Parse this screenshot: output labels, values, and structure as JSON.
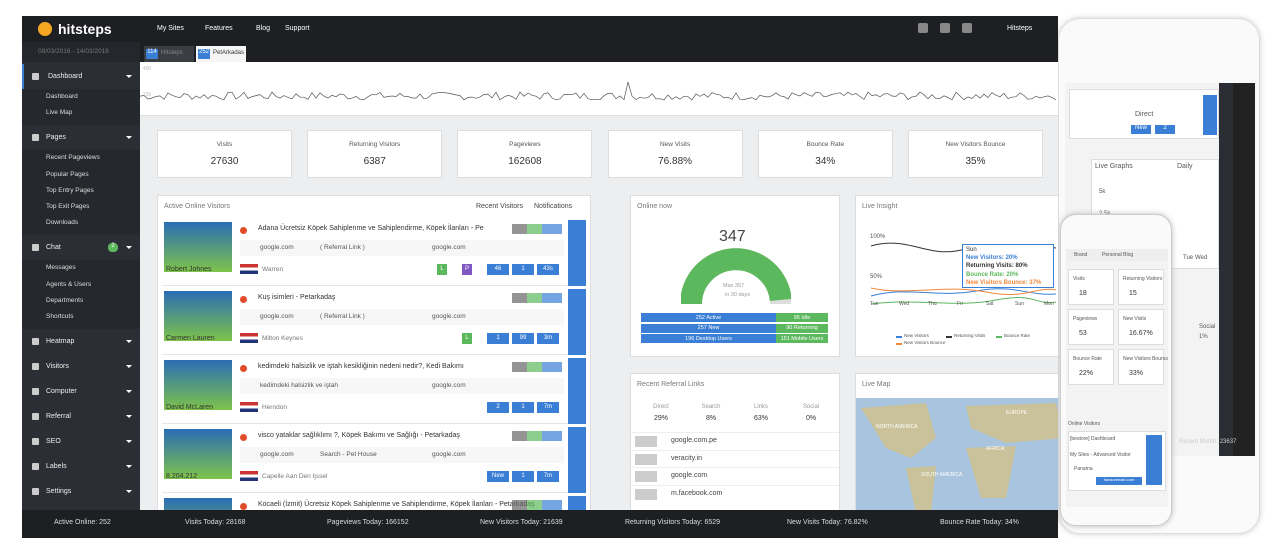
{
  "nav": {
    "brand": "hitsteps",
    "menu": [
      "My Sites",
      "Features",
      "Blog",
      "Support"
    ],
    "user": "Hitsteps"
  },
  "date_range": "08/03/2016 - 14/03/2016",
  "site_tabs": [
    {
      "count": "114",
      "label": "Hitsteps"
    },
    {
      "count": "252",
      "label": "PetArkadas"
    }
  ],
  "sidebar": [
    {
      "label": "Dashboard",
      "children": [
        "Dashboard",
        "Live Map"
      ]
    },
    {
      "label": "Pages",
      "children": [
        "Recent Pageviews",
        "Popular Pages",
        "Top Entry Pages",
        "Top Exit Pages",
        "Downloads"
      ]
    },
    {
      "label": "Chat",
      "badge": "2",
      "children": [
        "Messages",
        "Agents & Users",
        "Departments",
        "Shortcuts"
      ]
    },
    {
      "label": "Heatmap"
    },
    {
      "label": "Visitors"
    },
    {
      "label": "Computer"
    },
    {
      "label": "Referral"
    },
    {
      "label": "SEO"
    },
    {
      "label": "Labels"
    },
    {
      "label": "Settings"
    }
  ],
  "traffic_axis": [
    "400",
    "200"
  ],
  "stats": [
    {
      "label": "Visits",
      "value": "27630"
    },
    {
      "label": "Returning Visitors",
      "value": "6387"
    },
    {
      "label": "Pageviews",
      "value": "162608"
    },
    {
      "label": "New Visits",
      "value": "76.88%"
    },
    {
      "label": "Bounce Rate",
      "value": "34%"
    },
    {
      "label": "New Visitors Bounce",
      "value": "35%"
    }
  ],
  "active_online": {
    "title": "Active Online Visitors",
    "tabs": [
      "Recent Visitors",
      "Notifications"
    ],
    "visitors": [
      {
        "page": "Adana Ücretsiz Köpek Sahiplenme ve Sahiplendirme, Köpek İlanları - Pe",
        "source": "google.com",
        "referral": "( Referral Link )",
        "engine": "google.com",
        "name": "Robert Johnes",
        "location": "Warren",
        "badges": [
          "L",
          "P",
          "46",
          "1",
          "43s"
        ]
      },
      {
        "page": "Kuş isimleri - Petarkadaş",
        "source": "google.com",
        "referral": "( Referral Link )",
        "engine": "google.com",
        "name": "Carmen Lauren",
        "location": "Milton Keynes",
        "badges": [
          "L",
          "1",
          "99",
          "3m"
        ]
      },
      {
        "page": "kedimdeki halsizlik ve iştah kesikliğinin nedeni nedir?, Kedi Bakımı",
        "source": "kedimdeki halsizlik ve iştah",
        "engine": "google.com",
        "name": "David McLaren",
        "location": "Herndon",
        "badges": [
          "2",
          "1",
          "7m"
        ]
      },
      {
        "page": "visco yataklar sağlıklımı ?, Köpek Bakımı ve Sağlığı - Petarkadaş",
        "source": "google.com",
        "referral": "Search - Pet House",
        "engine": "google.com",
        "name": "8.204.212",
        "location": "Capelle Aan Den Ijssel",
        "badges": [
          "New",
          "1",
          "7m"
        ]
      },
      {
        "page": "Kocaeli (İzmit) Ücretsiz Köpek Sahiplenme ve Sahiplendirme, Köpek İlanları - Petarkadaş"
      }
    ]
  },
  "online_now": {
    "title": "Online now",
    "count": "347",
    "max": "Max 357",
    "period": "in 30 days",
    "bars": [
      [
        "252 Active",
        "95 Idle"
      ],
      [
        "257 New",
        "90 Returning"
      ],
      [
        "196 Desktop Users",
        "151 Mobile Users"
      ]
    ]
  },
  "live_insight": {
    "title": "Live Insight",
    "axis": [
      "100%",
      "50%"
    ],
    "days": [
      "Tue",
      "Wed",
      "Thu",
      "Fri",
      "Sat",
      "Sun",
      "Mon"
    ],
    "tooltip": [
      "Sun",
      "New Visitors: 20%",
      "Returning Visits: 80%",
      "Bounce Rate: 20%",
      "New Visitors Bounce: 37%"
    ],
    "legend": [
      "New Visitors",
      "Returning Visits",
      "Bounce Rate",
      "New Visitors Bounce"
    ]
  },
  "referrals": {
    "title": "Recent Referral Links",
    "columns": [
      {
        "label": "Direct",
        "value": "29%"
      },
      {
        "label": "Search",
        "value": "8%"
      },
      {
        "label": "Links",
        "value": "63%"
      },
      {
        "label": "Social",
        "value": "0%"
      }
    ],
    "links": [
      "google.com.pe",
      "veracity.in",
      "google.com",
      "m.facebook.com"
    ]
  },
  "live_map": {
    "title": "Live Map",
    "regions": [
      "NORTH AMERICA",
      "EUROPE",
      "AFRICA",
      "SOUTH AMERICA"
    ]
  },
  "footer": [
    "Active Online: 252",
    "Visits Today: 28168",
    "Pageviews Today: 166152",
    "New Visitors Today: 21639",
    "Returning Visitors Today: 6529",
    "New Visits Today: 76.82%",
    "Bounce Rate Today: 34%"
  ],
  "tablet": {
    "filter": "Direct",
    "graph_title": "Live Graphs",
    "period": "Daily",
    "axis": [
      "5k",
      "2.5k"
    ],
    "days": [
      "Tue",
      "Wed"
    ],
    "buttons": [
      "New",
      "2"
    ],
    "side": [
      "Social",
      "1%"
    ],
    "footer": "Recent Month: 23637"
  },
  "phone": {
    "tabs": [
      "Brand",
      "Personal Blog"
    ],
    "stats": [
      {
        "label": "Visits",
        "value": "18"
      },
      {
        "label": "Returning Visitors",
        "value": "15"
      },
      {
        "label": "Pageviews",
        "value": "53"
      },
      {
        "label": "New Visits",
        "value": "16.67%"
      },
      {
        "label": "Bounce Rate",
        "value": "22%"
      },
      {
        "label": "New Visitors Bounce",
        "value": "33%"
      }
    ],
    "online_title": "Online Visitors",
    "page": "[bestore] Dashboard",
    "referrer": "My Sites - Advanced Visitor",
    "location": "Panama",
    "site": "fanstorebabi.com"
  }
}
